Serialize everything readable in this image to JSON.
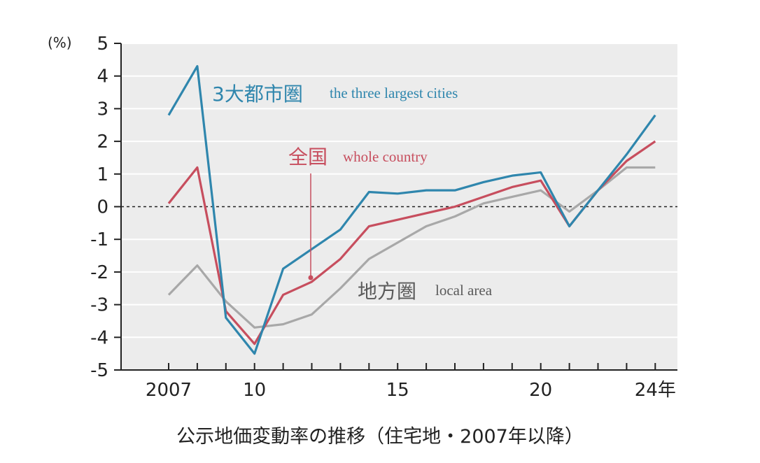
{
  "chart_data": {
    "type": "line",
    "y_unit": "(%)",
    "ylim": [
      -5,
      5
    ],
    "yticks": [
      "5",
      "4",
      "3",
      "2",
      "1",
      "0",
      "-1",
      "-2",
      "-3",
      "-4",
      "-5"
    ],
    "x": [
      2007,
      2008,
      2009,
      2010,
      2011,
      2012,
      2013,
      2014,
      2015,
      2016,
      2017,
      2018,
      2019,
      2020,
      2021,
      2022,
      2023,
      2024
    ],
    "x_tick_labels": [
      {
        "x": 2007,
        "label": "2007"
      },
      {
        "x": 2010,
        "label": "10"
      },
      {
        "x": 2015,
        "label": "15"
      },
      {
        "x": 2020,
        "label": "20"
      },
      {
        "x": 2024,
        "label": "24年"
      }
    ],
    "caption": "公示地価変動率の推移（住宅地・2007年以降）",
    "series": [
      {
        "name_jp": "3大都市圏",
        "name_en": "the three largest cities",
        "color": "#2f86ad",
        "values": [
          2.8,
          4.3,
          -3.4,
          -4.5,
          -1.9,
          -1.3,
          -0.7,
          0.45,
          0.4,
          0.5,
          0.5,
          0.75,
          0.95,
          1.05,
          -0.6,
          0.5,
          1.6,
          2.8
        ]
      },
      {
        "name_jp": "全国",
        "name_en": "whole country",
        "color": "#c74e5e",
        "values": [
          0.1,
          1.2,
          -3.2,
          -4.2,
          -2.7,
          -2.3,
          -1.6,
          -0.6,
          -0.4,
          -0.2,
          0.0,
          0.3,
          0.6,
          0.8,
          -0.6,
          0.5,
          1.4,
          2.0
        ]
      },
      {
        "name_jp": "地方圏",
        "name_en": "local area",
        "color": "#a8a8a8",
        "values": [
          -2.7,
          -1.8,
          -2.9,
          -3.7,
          -3.6,
          -3.3,
          -2.5,
          -1.6,
          -1.1,
          -0.6,
          -0.3,
          0.1,
          0.3,
          0.5,
          -0.15,
          0.5,
          1.2,
          1.2
        ]
      }
    ],
    "zero_line": "dashed",
    "grid": true
  }
}
